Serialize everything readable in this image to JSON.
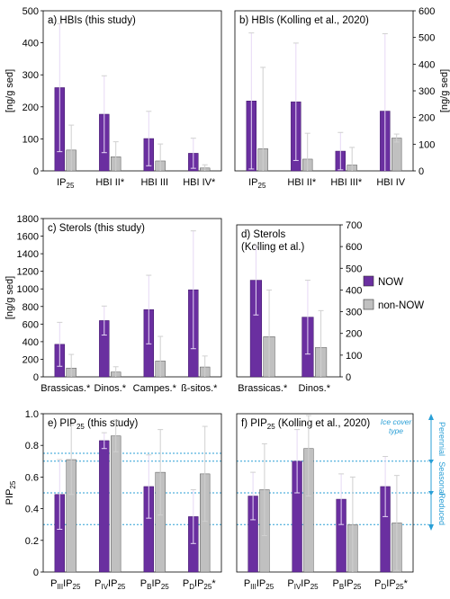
{
  "figure": {
    "legend": {
      "items": [
        "NOW",
        "non-NOW"
      ],
      "colors": [
        "#6a2fa0",
        "#c0c0c0"
      ]
    },
    "ice_cover": {
      "title": "Ice cover type",
      "labels": [
        "Perennial",
        "Seasonal",
        "Reduced"
      ],
      "color": "#2a9fd6"
    }
  },
  "chart_data": [
    {
      "id": "a",
      "type": "bar",
      "title": "a) HBIs (this study)",
      "ylabel": "[ng/g sed]",
      "ylim": [
        0,
        500
      ],
      "yticks": [
        0,
        100,
        200,
        300,
        400,
        500
      ],
      "axis_side": "left",
      "categories": [
        {
          "base": "IP",
          "sub": "25",
          "post": ""
        },
        {
          "base": "HBI II*",
          "sub": "",
          "post": ""
        },
        {
          "base": "HBI III",
          "sub": "",
          "post": ""
        },
        {
          "base": "HBI IV*",
          "sub": "",
          "post": ""
        }
      ],
      "series": [
        {
          "name": "NOW",
          "values": [
            260,
            177,
            101,
            55
          ],
          "errors": [
            200,
            120,
            85,
            47
          ]
        },
        {
          "name": "non-NOW",
          "values": [
            65,
            44,
            31,
            9
          ],
          "errors": [
            78,
            47,
            53,
            10
          ]
        }
      ]
    },
    {
      "id": "b",
      "type": "bar",
      "title": "b) HBIs (Kolling et al., 2020)",
      "ylabel": "[ng/g sed]",
      "ylim": [
        0,
        600
      ],
      "yticks": [
        0,
        100,
        200,
        300,
        400,
        500,
        600
      ],
      "axis_side": "right",
      "categories": [
        {
          "base": "IP",
          "sub": "25",
          "post": ""
        },
        {
          "base": "HBI II*",
          "sub": "",
          "post": ""
        },
        {
          "base": "HBI III*",
          "sub": "",
          "post": ""
        },
        {
          "base": "HBI IV",
          "sub": "",
          "post": ""
        }
      ],
      "series": [
        {
          "name": "NOW",
          "values": [
            262,
            259,
            74,
            224
          ],
          "errors": [
            255,
            220,
            70,
            290
          ]
        },
        {
          "name": "non-NOW",
          "values": [
            83,
            44,
            22,
            123
          ],
          "errors": [
            305,
            97,
            66,
            15
          ]
        }
      ]
    },
    {
      "id": "c",
      "type": "bar",
      "title": "c) Sterols (this study)",
      "ylabel": "[ng/g sed]",
      "ylim": [
        0,
        1800
      ],
      "yticks": [
        0,
        200,
        400,
        600,
        800,
        1000,
        1200,
        1400,
        1600,
        1800
      ],
      "axis_side": "left",
      "categories": [
        {
          "base": "Brassicas.*",
          "sub": "",
          "post": ""
        },
        {
          "base": "Dinos.*",
          "sub": "",
          "post": ""
        },
        {
          "base": "Campes.*",
          "sub": "",
          "post": ""
        },
        {
          "base": "ß-sitos.*",
          "sub": "",
          "post": ""
        }
      ],
      "series": [
        {
          "name": "NOW",
          "values": [
            370,
            640,
            765,
            990
          ],
          "errors": [
            250,
            165,
            390,
            670
          ]
        },
        {
          "name": "non-NOW",
          "values": [
            100,
            55,
            180,
            112
          ],
          "errors": [
            155,
            60,
            280,
            125
          ]
        }
      ]
    },
    {
      "id": "d",
      "type": "bar",
      "title": "d) Sterols\n(Kolling et al.)",
      "ylabel": "",
      "ylim": [
        0,
        700
      ],
      "yticks": [
        0,
        100,
        200,
        300,
        400,
        500,
        600,
        700
      ],
      "axis_side": "right",
      "categories": [
        {
          "base": "Brassicas.*",
          "sub": "",
          "post": ""
        },
        {
          "base": "Dinos.*",
          "sub": "",
          "post": ""
        }
      ],
      "series": [
        {
          "name": "NOW",
          "values": [
            445,
            275
          ],
          "errors": [
            160,
            170
          ]
        },
        {
          "name": "non-NOW",
          "values": [
            185,
            135
          ],
          "errors": [
            215,
            170
          ]
        }
      ]
    },
    {
      "id": "e",
      "type": "bar",
      "title": "e) PIP₂₅ (this study)",
      "ylabel": "PIP₂₅",
      "ylim": [
        0,
        1.0
      ],
      "yticks": [
        "0",
        "0.2",
        "0.4",
        "0.6",
        "0.8",
        "1.0"
      ],
      "axis_side": "left",
      "categories": [
        {
          "base": "P",
          "sub": "III",
          "post": "IP",
          "sub2": "25",
          "post2": ""
        },
        {
          "base": "P",
          "sub": "IV",
          "post": "IP",
          "sub2": "25",
          "post2": ""
        },
        {
          "base": "P",
          "sub": "B",
          "post": "IP",
          "sub2": "25",
          "post2": ""
        },
        {
          "base": "P",
          "sub": "D",
          "post": "IP",
          "sub2": "25",
          "post2": "*"
        }
      ],
      "series": [
        {
          "name": "NOW",
          "values": [
            0.49,
            0.83,
            0.54,
            0.35
          ],
          "errors": [
            0.22,
            0.05,
            0.2,
            0.17
          ]
        },
        {
          "name": "non-NOW",
          "values": [
            0.71,
            0.86,
            0.63,
            0.62
          ],
          "errors": [
            0.22,
            0.1,
            0.27,
            0.3
          ]
        }
      ],
      "ref_lines": [
        0.3,
        0.5,
        0.7,
        0.75
      ]
    },
    {
      "id": "f",
      "type": "bar",
      "title": "f) PIP₂₅ (Kolling et al., 2020)",
      "ylabel": "",
      "ylim": [
        0,
        1.0
      ],
      "yticks": [],
      "axis_side": "none",
      "categories": [
        {
          "base": "P",
          "sub": "III",
          "post": "IP",
          "sub2": "25",
          "post2": ""
        },
        {
          "base": "P",
          "sub": "IV",
          "post": "IP",
          "sub2": "25",
          "post2": ""
        },
        {
          "base": "P",
          "sub": "B",
          "post": "IP",
          "sub2": "25",
          "post2": ""
        },
        {
          "base": "P",
          "sub": "D",
          "post": "IP",
          "sub2": "25",
          "post2": "*"
        }
      ],
      "series": [
        {
          "name": "NOW",
          "values": [
            0.48,
            0.7,
            0.46,
            0.54
          ],
          "errors": [
            0.15,
            0.2,
            0.16,
            0.19
          ]
        },
        {
          "name": "non-NOW",
          "values": [
            0.52,
            0.78,
            0.3,
            0.31
          ],
          "errors": [
            0.29,
            0.3,
            0.3,
            0.3
          ]
        }
      ],
      "ref_lines": [
        0.3,
        0.5,
        0.7
      ]
    }
  ]
}
